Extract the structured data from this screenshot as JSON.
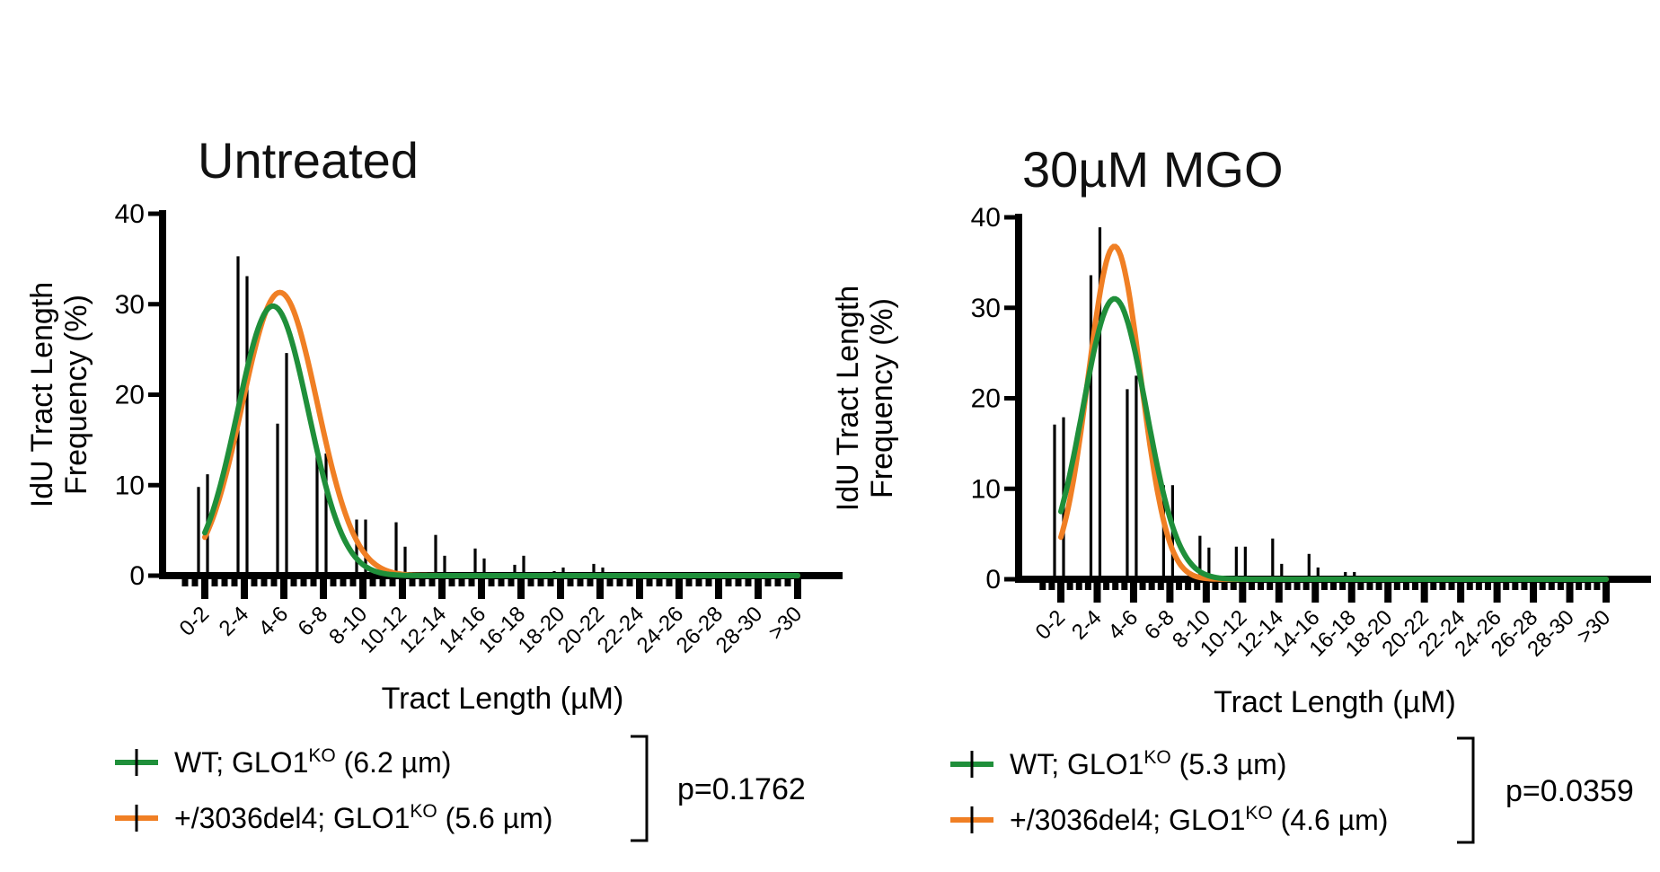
{
  "chart_data": [
    {
      "type": "bar",
      "title": "Untreated",
      "xlabel": "Tract Length (µM)",
      "ylabel": [
        "IdU Tract Length",
        "Frequency (%)"
      ],
      "ylim": [
        0,
        40
      ],
      "yticks": [
        "0",
        "10",
        "20",
        "30",
        "40"
      ],
      "categories": [
        "0-2",
        "2-4",
        "4-6",
        "6-8",
        "8-10",
        "10-12",
        "12-14",
        "14-16",
        "16-18",
        "18-20",
        "20-22",
        "22-24",
        "24-26",
        "26-28",
        "28-30",
        ">30"
      ],
      "series": [
        {
          "name": "WT; GLO1",
          "sup": "KO",
          "suffix": " (6.2 µm)",
          "color": "#1f8f3a",
          "values": [
            9.8,
            35.3,
            16.8,
            13.7,
            6.2,
            5.9,
            4.5,
            3.0,
            1.2,
            0.5,
            1.3,
            0.1,
            0,
            0,
            0,
            0
          ],
          "fit": {
            "amplitude": 29.8,
            "mean": 3.45,
            "sd": 1.8
          }
        },
        {
          "name": "+/3036del4; GLO1",
          "sup": "KO",
          "suffix": " (5.6 µm)",
          "color": "#f07f24",
          "values": [
            11.2,
            33.1,
            24.6,
            13.5,
            6.2,
            3.2,
            2.2,
            1.9,
            2.2,
            0.9,
            0.9,
            0.2,
            0,
            0,
            0,
            0
          ],
          "fit": {
            "amplitude": 31.3,
            "mean": 3.8,
            "sd": 1.9
          }
        }
      ],
      "pvalue": "p=0.1762"
    },
    {
      "type": "bar",
      "title": "30µM MGO",
      "xlabel": "Tract Length (µM)",
      "ylabel": [
        "IdU Tract Length",
        "Frequency (%)"
      ],
      "ylim": [
        0,
        40
      ],
      "yticks": [
        "0",
        "10",
        "20",
        "30",
        "40"
      ],
      "categories": [
        "0-2",
        "2-4",
        "4-6",
        "6-8",
        "8-10",
        "10-12",
        "12-14",
        "14-16",
        "16-18",
        "18-20",
        "20-22",
        "22-24",
        "24-26",
        "26-28",
        "28-30",
        ">30"
      ],
      "series": [
        {
          "name": "WT; GLO1",
          "sup": "KO",
          "suffix": " (5.3 µm)",
          "color": "#1f8f3a",
          "values": [
            17.1,
            33.6,
            21.0,
            10.4,
            4.8,
            3.6,
            4.5,
            2.8,
            0.8,
            0.1,
            0,
            0,
            0,
            0,
            0,
            0
          ],
          "fit": {
            "amplitude": 31.0,
            "mean": 2.95,
            "sd": 1.75
          }
        },
        {
          "name": "+/3036del4; GLO1",
          "sup": "KO",
          "suffix": " (4.6 µm)",
          "color": "#f07f24",
          "values": [
            17.9,
            38.9,
            22.5,
            10.4,
            3.5,
            3.6,
            1.7,
            1.3,
            0.8,
            0,
            0,
            0,
            0,
            0,
            0,
            0
          ],
          "fit": {
            "amplitude": 36.8,
            "mean": 2.95,
            "sd": 1.45
          }
        }
      ],
      "pvalue": "p=0.0359"
    }
  ]
}
